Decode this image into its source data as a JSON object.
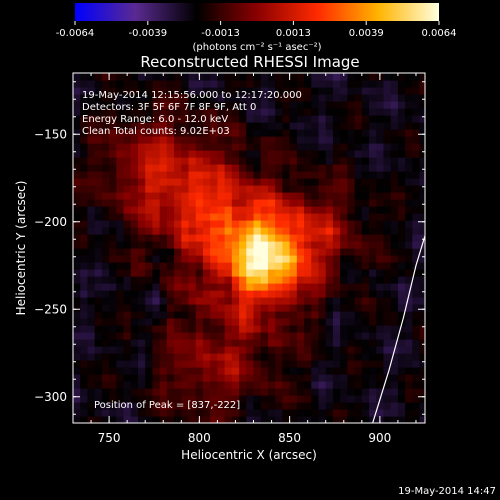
{
  "chart_data": {
    "type": "heatmap",
    "title": "Reconstructed RHESSI Image",
    "xlabel": "Heliocentric X (arcsec)",
    "ylabel": "Heliocentric Y (arcsec)",
    "xlim": [
      730,
      925
    ],
    "ylim": [
      -315,
      -115
    ],
    "x_ticks": [
      750,
      800,
      850,
      900
    ],
    "y_ticks": [
      -150,
      -200,
      -250,
      -300
    ],
    "colorbar": {
      "ticks": [
        "-0.0064",
        "-0.0039",
        "-0.0013",
        "0.0013",
        "0.0039",
        "0.0064"
      ],
      "range": [
        -0.0064,
        0.0064
      ],
      "unit_label": "(photons cm⁻² s⁻¹ asec⁻²)",
      "colors": [
        "#0000ff",
        "#5a2a90",
        "#000000",
        "#8a0000",
        "#ff2a00",
        "#ffb400",
        "#ffffe0"
      ]
    },
    "annotations": [
      "19-May-2014 12:15:56.000 to 12:17:20.000",
      "Detectors: 3F 5F 6F 7F 8F 9F, Att 0",
      "Energy Range: 6.0 - 12.0 keV",
      "Clean     Total counts: 9.02E+03"
    ],
    "peak": {
      "x": 837,
      "y": -222,
      "value": 0.0064,
      "label": "Position of Peak = [837,-222]"
    },
    "sources": [
      {
        "x": 837,
        "y": -222,
        "sigma": 16,
        "amp": 0.0064
      },
      {
        "x": 815,
        "y": -200,
        "sigma": 22,
        "amp": 0.003
      },
      {
        "x": 790,
        "y": -180,
        "sigma": 24,
        "amp": 0.002
      },
      {
        "x": 865,
        "y": -205,
        "sigma": 20,
        "amp": 0.0022
      },
      {
        "x": 820,
        "y": -265,
        "sigma": 25,
        "amp": 0.0018
      },
      {
        "x": 770,
        "y": -165,
        "sigma": 20,
        "amp": 0.0016
      },
      {
        "x": 800,
        "y": -290,
        "sigma": 18,
        "amp": 0.0012
      }
    ],
    "limb": [
      [
        896,
        -315
      ],
      [
        905,
        -285
      ],
      [
        913,
        -255
      ],
      [
        920,
        -225
      ],
      [
        925,
        -208
      ]
    ],
    "grid": false
  },
  "footer": {
    "date": "19-May-2014 14:47"
  }
}
